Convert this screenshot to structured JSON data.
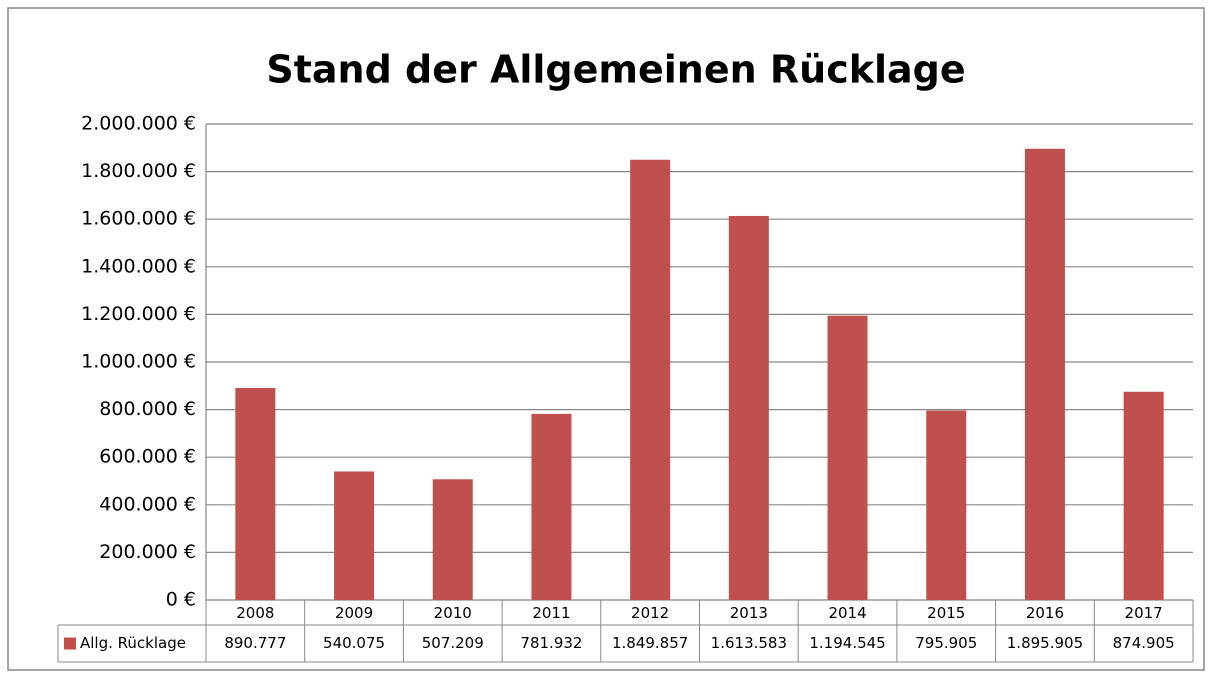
{
  "chart_data": {
    "type": "bar",
    "title": "Stand der Allgemeinen Rücklage",
    "categories": [
      "2008",
      "2009",
      "2010",
      "2011",
      "2012",
      "2013",
      "2014",
      "2015",
      "2016",
      "2017"
    ],
    "series": [
      {
        "name": "Allg. Rücklage",
        "color": "#c0504d",
        "values": [
          890777,
          540075,
          507209,
          781932,
          1849857,
          1613583,
          1194545,
          795905,
          1895905,
          874905
        ],
        "value_labels": [
          "890.777",
          "540.075",
          "507.209",
          "781.932",
          "1.849.857",
          "1.613.583",
          "1.194.545",
          "795.905",
          "1.895.905",
          "874.905"
        ]
      }
    ],
    "ylim": [
      0,
      2000000
    ],
    "yticks": [
      {
        "value": 0,
        "label": "0 €"
      },
      {
        "value": 200000,
        "label": "200.000 €"
      },
      {
        "value": 400000,
        "label": "400.000 €"
      },
      {
        "value": 600000,
        "label": "600.000 €"
      },
      {
        "value": 800000,
        "label": "800.000 €"
      },
      {
        "value": 1000000,
        "label": "1.000.000 €"
      },
      {
        "value": 1200000,
        "label": "1.200.000 €"
      },
      {
        "value": 1400000,
        "label": "1.400.000 €"
      },
      {
        "value": 1600000,
        "label": "1.600.000 €"
      },
      {
        "value": 1800000,
        "label": "1.800.000 €"
      },
      {
        "value": 2000000,
        "label": "2.000.000 €"
      }
    ],
    "grid": true
  }
}
